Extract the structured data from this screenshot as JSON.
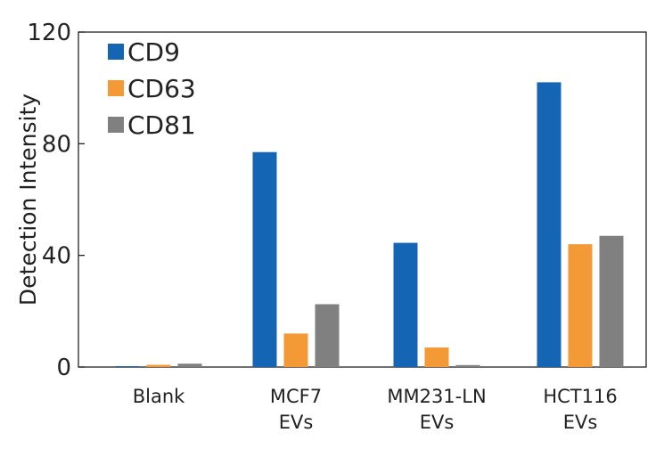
{
  "chart_data": {
    "type": "bar",
    "ylabel": "Detection Intensity",
    "xlabel": "",
    "ylim": [
      0,
      120
    ],
    "yticks": [
      0,
      40,
      80,
      120
    ],
    "grid": false,
    "legend_position": "top-left",
    "categories": [
      [
        "Blank"
      ],
      [
        "MCF7",
        "EVs"
      ],
      [
        "MM231-LN",
        "EVs"
      ],
      [
        "HCT116",
        "EVs"
      ]
    ],
    "series": [
      {
        "name": "CD9",
        "color": "#1565b5",
        "values": [
          0.3,
          77,
          44.5,
          102
        ]
      },
      {
        "name": "CD63",
        "color": "#f39a37",
        "values": [
          0.8,
          12,
          7,
          44
        ]
      },
      {
        "name": "CD81",
        "color": "#808080",
        "values": [
          1.2,
          22.5,
          0.7,
          47
        ]
      }
    ]
  }
}
